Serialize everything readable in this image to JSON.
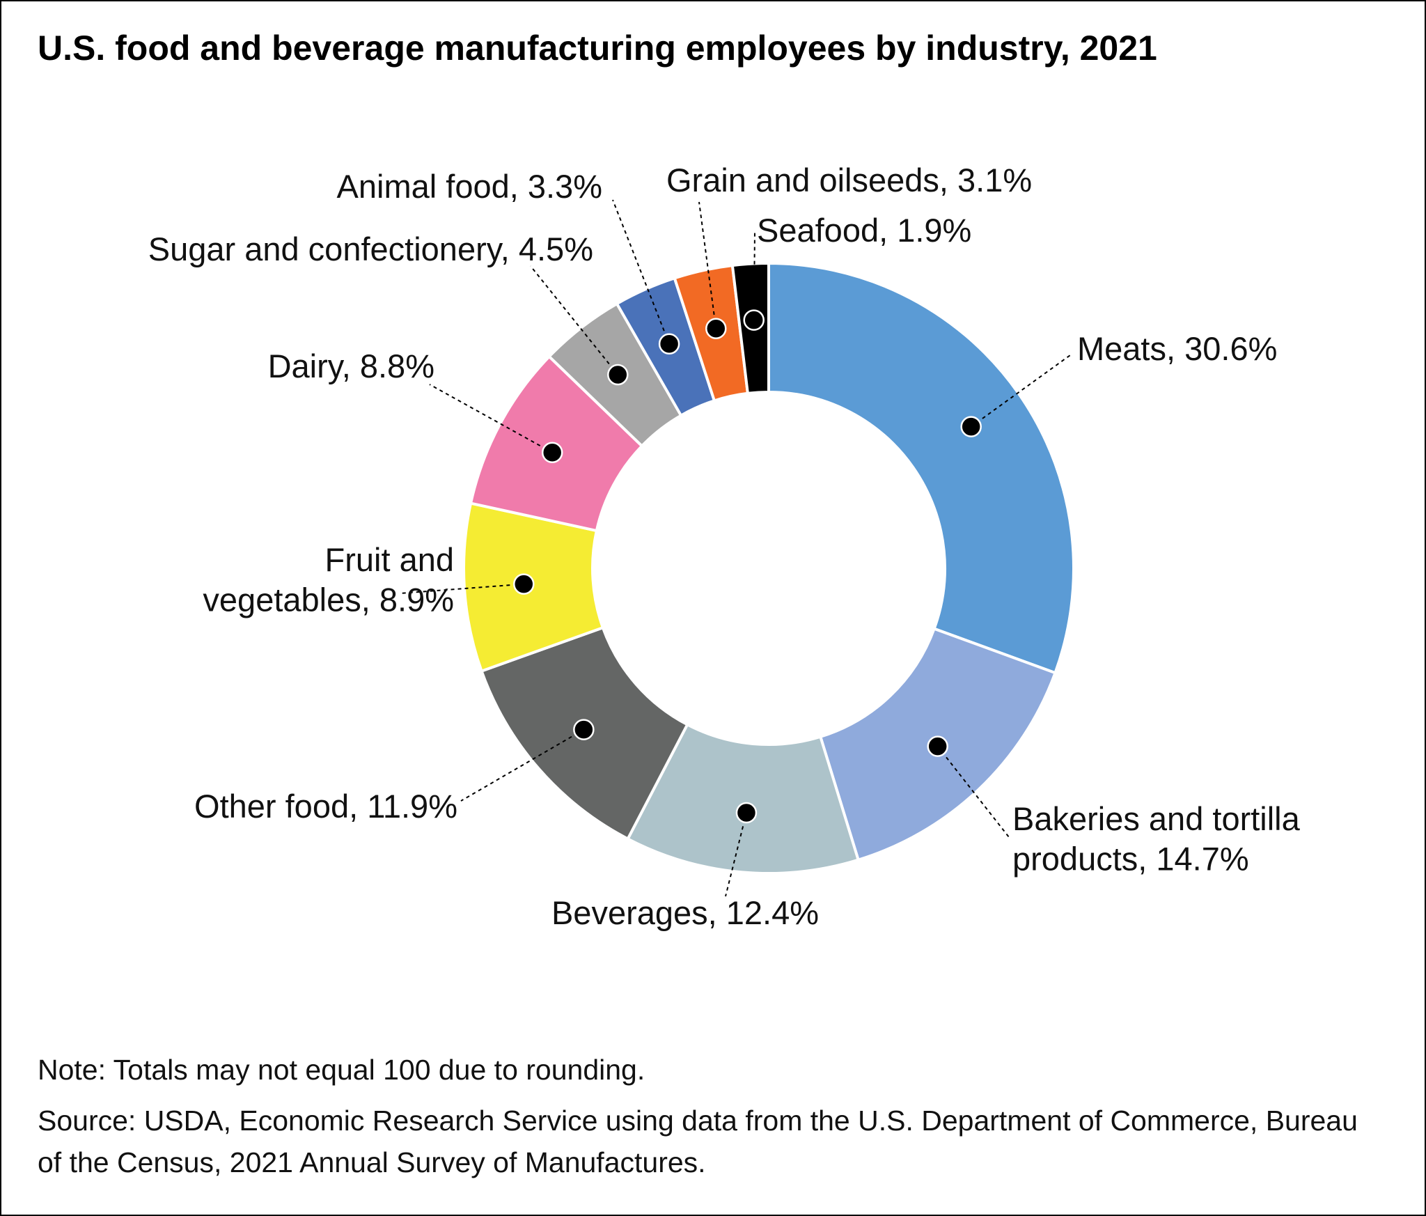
{
  "title": "U.S. food and beverage manufacturing employees by industry, 2021",
  "note": "Note: Totals may not equal 100 due to rounding.",
  "source": "Source: USDA, Economic Research Service using data from the U.S. Department of Commerce, Bureau of the Census, 2021 Annual Survey of Manufactures.",
  "chart_data": {
    "type": "pie",
    "subtype": "donut",
    "title": "U.S. food and beverage manufacturing employees by industry, 2021",
    "unit": "%",
    "start": "12 o'clock, clockwise",
    "slices": [
      {
        "name": "Meats",
        "value": 30.6,
        "color": "#5b9bd5",
        "label_lines": [
          "Meats, 30.6%"
        ]
      },
      {
        "name": "Bakeries and tortilla products",
        "value": 14.7,
        "color": "#8faadc",
        "label_lines": [
          "Bakeries and tortilla",
          "products, 14.7%"
        ]
      },
      {
        "name": "Beverages",
        "value": 12.4,
        "color": "#adc3ca",
        "label_lines": [
          "Beverages, 12.4%"
        ]
      },
      {
        "name": "Other food",
        "value": 11.9,
        "color": "#646665",
        "label_lines": [
          "Other food, 11.9%"
        ]
      },
      {
        "name": "Fruit and vegetables",
        "value": 8.9,
        "color": "#f5ec33",
        "label_lines": [
          "Fruit and",
          "vegetables, 8.9%"
        ]
      },
      {
        "name": "Dairy",
        "value": 8.8,
        "color": "#f07bab",
        "label_lines": [
          "Dairy, 8.8%"
        ]
      },
      {
        "name": "Sugar and confectionery",
        "value": 4.5,
        "color": "#a6a6a6",
        "label_lines": [
          "Sugar and confectionery, 4.5%"
        ]
      },
      {
        "name": "Animal food",
        "value": 3.3,
        "color": "#4a72b9",
        "label_lines": [
          "Animal food, 3.3%"
        ]
      },
      {
        "name": "Grain and oilseeds",
        "value": 3.1,
        "color": "#f26a24",
        "label_lines": [
          "Grain and oilseeds, 3.1%"
        ]
      },
      {
        "name": "Seafood",
        "value": 1.9,
        "color": "#000000",
        "label_lines": [
          "Seafood, 1.9%"
        ]
      }
    ]
  }
}
